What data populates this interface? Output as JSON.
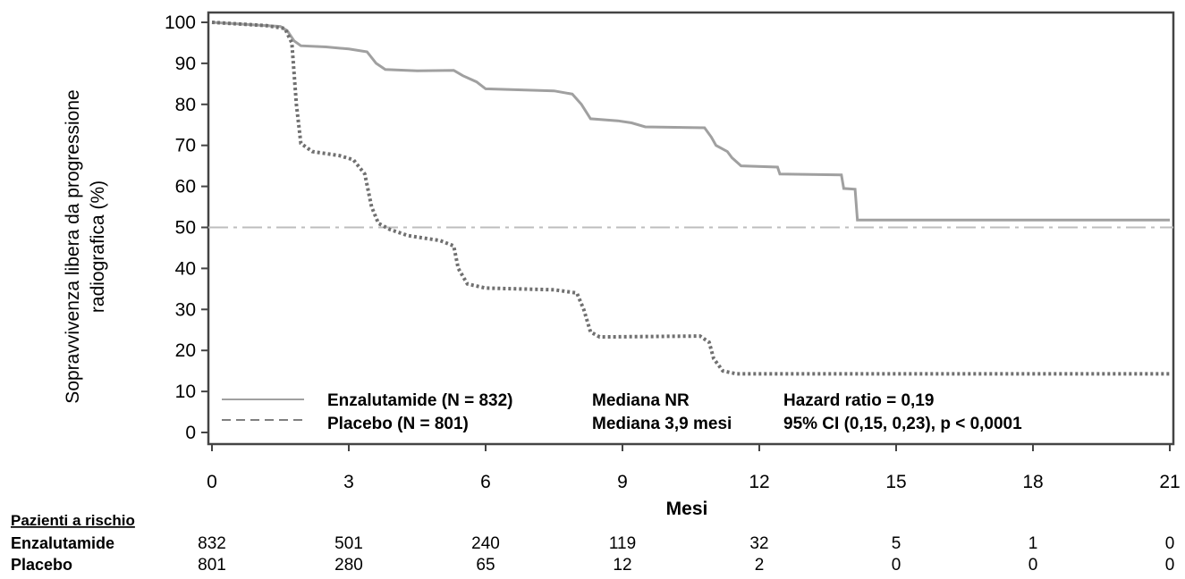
{
  "chart_data": {
    "type": "line",
    "ylabel_lines": [
      "Sopravvivenza libera da progressione",
      "radiografica (%)"
    ],
    "xlabel": "Mesi",
    "xlim": [
      0,
      21
    ],
    "ylim": [
      0,
      100
    ],
    "x_ticks": [
      0,
      3,
      6,
      9,
      12,
      15,
      18,
      21
    ],
    "y_ticks": [
      0,
      10,
      20,
      30,
      40,
      50,
      60,
      70,
      80,
      90,
      100
    ],
    "reference_line": {
      "y": 50,
      "style": "dash-dot"
    },
    "series": [
      {
        "name": "Enzalutamide",
        "legend_label": "Enzalutamide  (N = 832)",
        "median_label": "Mediana NR",
        "stat_label": "Hazard ratio = 0,19",
        "color": "#a0a0a0",
        "style": "solid",
        "points": [
          [
            0,
            100
          ],
          [
            1.5,
            99
          ],
          [
            1.65,
            98
          ],
          [
            1.8,
            95.5
          ],
          [
            1.95,
            94.3
          ],
          [
            2.5,
            94
          ],
          [
            3,
            93.5
          ],
          [
            3.4,
            92.8
          ],
          [
            3.6,
            90
          ],
          [
            3.8,
            88.5
          ],
          [
            4.5,
            88.2
          ],
          [
            5.3,
            88.3
          ],
          [
            5.5,
            87
          ],
          [
            5.8,
            85.5
          ],
          [
            6,
            83.8
          ],
          [
            7.5,
            83.3
          ],
          [
            7.9,
            82.5
          ],
          [
            8.1,
            80
          ],
          [
            8.3,
            76.5
          ],
          [
            8.9,
            76
          ],
          [
            9.2,
            75.5
          ],
          [
            9.5,
            74.5
          ],
          [
            10.8,
            74.3
          ],
          [
            10.95,
            72
          ],
          [
            11.05,
            70
          ],
          [
            11.3,
            68.5
          ],
          [
            11.4,
            67
          ],
          [
            11.6,
            65
          ],
          [
            12.4,
            64.7
          ],
          [
            12.45,
            63
          ],
          [
            13.8,
            62.8
          ],
          [
            13.85,
            59.5
          ],
          [
            14.1,
            59.3
          ],
          [
            14.15,
            51.8
          ],
          [
            21,
            51.8
          ]
        ]
      },
      {
        "name": "Placebo",
        "legend_label": "Placebo  (N = 801)",
        "median_label": "Mediana 3,9 mesi",
        "stat_label": "95% CI (0,15, 0,23), p < 0,0001",
        "color": "#707070",
        "style": "dotted",
        "points": [
          [
            0,
            100
          ],
          [
            1.2,
            99.2
          ],
          [
            1.6,
            98.5
          ],
          [
            1.75,
            95
          ],
          [
            1.85,
            80
          ],
          [
            1.95,
            70.5
          ],
          [
            2.2,
            68.5
          ],
          [
            2.8,
            67.5
          ],
          [
            3.1,
            66.5
          ],
          [
            3.35,
            63
          ],
          [
            3.5,
            55
          ],
          [
            3.65,
            51
          ],
          [
            3.9,
            49.5
          ],
          [
            4.3,
            48
          ],
          [
            5,
            46.8
          ],
          [
            5.3,
            45.5
          ],
          [
            5.4,
            40
          ],
          [
            5.6,
            36.2
          ],
          [
            6,
            35.2
          ],
          [
            7.5,
            34.8
          ],
          [
            8,
            34
          ],
          [
            8.15,
            30
          ],
          [
            8.3,
            24.5
          ],
          [
            8.5,
            23.3
          ],
          [
            10.7,
            23.5
          ],
          [
            10.9,
            22
          ],
          [
            11,
            18
          ],
          [
            11.2,
            15
          ],
          [
            11.5,
            14.3
          ],
          [
            21,
            14.3
          ]
        ]
      }
    ],
    "risk_table": {
      "title": "Pazienti a rischio",
      "rows": [
        {
          "label": "Enzalutamide",
          "values": [
            832,
            501,
            240,
            119,
            32,
            5,
            1,
            0
          ]
        },
        {
          "label": "Placebo",
          "values": [
            801,
            280,
            65,
            12,
            2,
            0,
            0,
            0
          ]
        }
      ]
    }
  }
}
